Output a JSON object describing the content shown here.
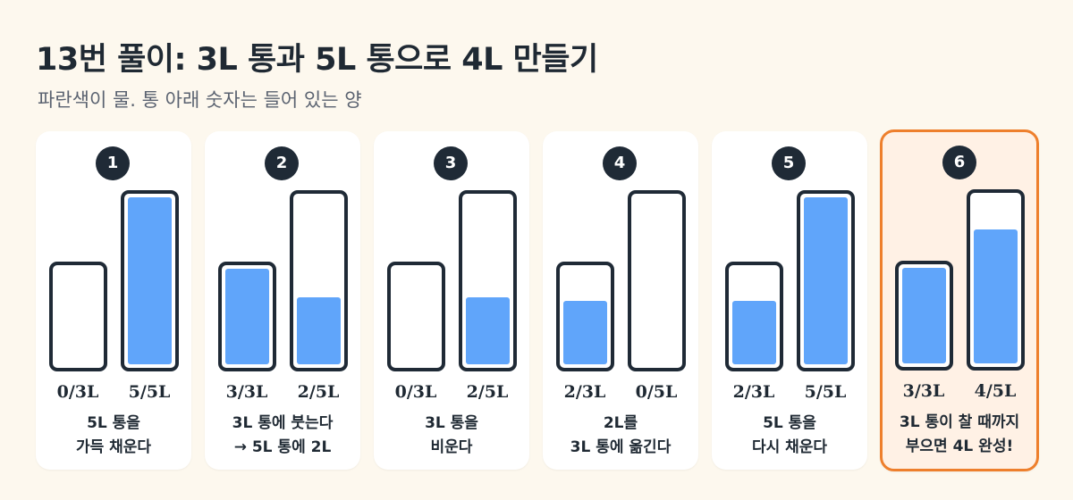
{
  "title": "13번 풀이: 3L 통과 5L 통으로 4L 만들기",
  "subtitle": "파란색이 물. 통 아래 숫자는 들어 있는 양",
  "colors": {
    "water": "#60a5fa",
    "outline": "#1f2a36",
    "highlight": "#ee7f2c",
    "highlight_bg": "#fff1e5"
  },
  "steps": [
    {
      "number": "1",
      "small_amount": "0/3L",
      "big_amount": "5/5L",
      "small_fill": 0,
      "big_fill": 5,
      "desc": [
        "5L 통을",
        "가득 채운다"
      ]
    },
    {
      "number": "2",
      "small_amount": "3/3L",
      "big_amount": "2/5L",
      "small_fill": 3,
      "big_fill": 2,
      "desc": [
        "3L 통에 붓는다",
        "→ 5L 통에 2L"
      ]
    },
    {
      "number": "3",
      "small_amount": "0/3L",
      "big_amount": "2/5L",
      "small_fill": 0,
      "big_fill": 2,
      "desc": [
        "3L 통을",
        "비운다"
      ]
    },
    {
      "number": "4",
      "small_amount": "2/3L",
      "big_amount": "0/5L",
      "small_fill": 2,
      "big_fill": 0,
      "desc": [
        "2L를",
        "3L 통에 옮긴다"
      ]
    },
    {
      "number": "5",
      "small_amount": "2/3L",
      "big_amount": "5/5L",
      "small_fill": 2,
      "big_fill": 5,
      "desc": [
        "5L 통을",
        "다시 채운다"
      ]
    },
    {
      "number": "6",
      "small_amount": "3/3L",
      "big_amount": "4/5L",
      "small_fill": 3,
      "big_fill": 4,
      "desc": [
        "3L 통이 찰 때까지",
        "부으면 4L 완성!"
      ],
      "final": true
    }
  ]
}
